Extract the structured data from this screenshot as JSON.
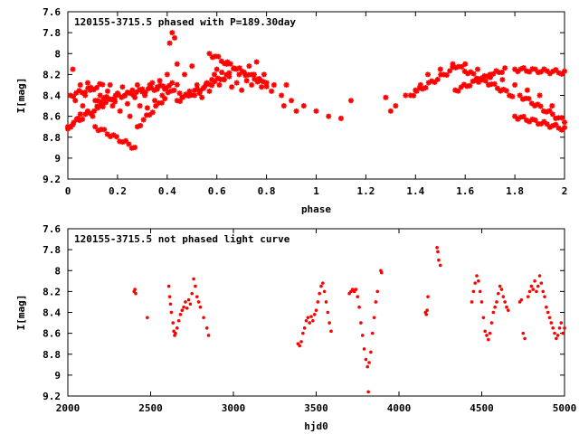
{
  "chart_data": [
    {
      "type": "scatter",
      "title": "120155-3715.5 phased with P=189.30day",
      "xlabel": "phase",
      "ylabel": "I[mag]",
      "xlim": [
        0,
        2
      ],
      "ylim": [
        7.6,
        9.2
      ],
      "y_inverted": true,
      "grid": false,
      "marker_color": "#ff0000",
      "marker": "asterisk",
      "xticks": [
        "0",
        "0.2",
        "0.4",
        "0.6",
        "0.8",
        "1",
        "1.2",
        "1.4",
        "1.6",
        "1.8",
        "2"
      ],
      "yticks": [
        "7.6",
        "7.8",
        "8",
        "8.2",
        "8.4",
        "8.6",
        "8.8",
        "9",
        "9.2"
      ],
      "points": [
        [
          0.0,
          8.72
        ],
        [
          0.01,
          8.7
        ],
        [
          0.02,
          8.15
        ],
        [
          0.02,
          8.68
        ],
        [
          0.03,
          8.45
        ],
        [
          0.04,
          8.62
        ],
        [
          0.05,
          8.3
        ],
        [
          0.05,
          8.58
        ],
        [
          0.06,
          8.5
        ],
        [
          0.07,
          8.4
        ],
        [
          0.08,
          8.55
        ],
        [
          0.08,
          8.28
        ],
        [
          0.09,
          8.35
        ],
        [
          0.1,
          8.6
        ],
        [
          0.11,
          8.45
        ],
        [
          0.12,
          8.52
        ],
        [
          0.13,
          8.4
        ],
        [
          0.14,
          8.48
        ],
        [
          0.15,
          8.42
        ],
        [
          0.16,
          8.36
        ],
        [
          0.17,
          8.3
        ],
        [
          0.18,
          8.5
        ],
        [
          0.19,
          8.46
        ],
        [
          0.2,
          8.38
        ],
        [
          0.21,
          8.55
        ],
        [
          0.22,
          8.32
        ],
        [
          0.23,
          8.4
        ],
        [
          0.24,
          8.48
        ],
        [
          0.25,
          8.6
        ],
        [
          0.26,
          8.35
        ],
        [
          0.27,
          8.42
        ],
        [
          0.28,
          8.3
        ],
        [
          0.29,
          8.5
        ],
        [
          0.3,
          8.34
        ],
        [
          0.31,
          8.4
        ],
        [
          0.32,
          8.52
        ],
        [
          0.33,
          8.3
        ],
        [
          0.34,
          8.28
        ],
        [
          0.35,
          8.45
        ],
        [
          0.36,
          8.32
        ],
        [
          0.37,
          8.26
        ],
        [
          0.38,
          8.4
        ],
        [
          0.39,
          8.34
        ],
        [
          0.4,
          8.2
        ],
        [
          0.41,
          7.9
        ],
        [
          0.42,
          7.8
        ],
        [
          0.43,
          7.85
        ],
        [
          0.44,
          8.1
        ],
        [
          0.45,
          8.38
        ],
        [
          0.46,
          8.42
        ],
        [
          0.47,
          8.2
        ],
        [
          0.48,
          8.4
        ],
        [
          0.49,
          8.36
        ],
        [
          0.5,
          8.12
        ],
        [
          0.51,
          8.4
        ],
        [
          0.52,
          8.3
        ],
        [
          0.53,
          8.38
        ],
        [
          0.54,
          8.42
        ],
        [
          0.55,
          8.32
        ],
        [
          0.56,
          8.28
        ],
        [
          0.57,
          8.36
        ],
        [
          0.58,
          8.25
        ],
        [
          0.59,
          8.2
        ],
        [
          0.6,
          8.15
        ],
        [
          0.61,
          8.3
        ],
        [
          0.62,
          8.18
        ],
        [
          0.63,
          8.25
        ],
        [
          0.64,
          8.1
        ],
        [
          0.65,
          8.22
        ],
        [
          0.66,
          8.32
        ],
        [
          0.67,
          8.14
        ],
        [
          0.68,
          8.28
        ],
        [
          0.69,
          8.2
        ],
        [
          0.7,
          8.35
        ],
        [
          0.71,
          8.18
        ],
        [
          0.72,
          8.26
        ],
        [
          0.73,
          8.12
        ],
        [
          0.74,
          8.3
        ],
        [
          0.75,
          8.2
        ],
        [
          0.76,
          8.08
        ],
        [
          0.77,
          8.24
        ],
        [
          0.78,
          8.32
        ],
        [
          0.79,
          8.2
        ],
        [
          0.8,
          8.28
        ],
        [
          0.82,
          8.36
        ],
        [
          0.83,
          8.3
        ],
        [
          0.86,
          8.4
        ],
        [
          0.87,
          8.5
        ],
        [
          0.88,
          8.3
        ],
        [
          0.9,
          8.45
        ],
        [
          0.92,
          8.55
        ],
        [
          0.95,
          8.5
        ],
        [
          1.0,
          8.55
        ],
        [
          1.05,
          8.6
        ],
        [
          1.1,
          8.62
        ],
        [
          1.14,
          8.45
        ],
        [
          1.28,
          8.42
        ],
        [
          1.3,
          8.55
        ],
        [
          1.32,
          8.5
        ],
        [
          1.36,
          8.4
        ],
        [
          1.4,
          8.35
        ],
        [
          1.42,
          8.3
        ],
        [
          1.45,
          8.2
        ],
        [
          1.5,
          8.15
        ],
        [
          1.55,
          8.12
        ],
        [
          1.6,
          8.1
        ],
        [
          1.65,
          8.15
        ],
        [
          1.7,
          8.2
        ],
        [
          1.75,
          8.25
        ],
        [
          1.8,
          8.3
        ],
        [
          1.85,
          8.35
        ],
        [
          1.9,
          8.4
        ],
        [
          1.95,
          8.5
        ]
      ],
      "clusters": [
        {
          "x0": 0.0,
          "x1": 0.2,
          "y0": 8.7,
          "y1": 8.4
        },
        {
          "x0": 0.01,
          "x1": 0.14,
          "y0": 8.4,
          "y1": 8.3
        },
        {
          "x0": 0.11,
          "x1": 0.27,
          "y0": 8.7,
          "y1": 8.9
        },
        {
          "x0": 0.12,
          "x1": 0.42,
          "y0": 8.45,
          "y1": 8.3
        },
        {
          "x0": 0.28,
          "x1": 0.44,
          "y0": 8.7,
          "y1": 8.3
        },
        {
          "x0": 0.44,
          "x1": 0.65,
          "y0": 8.45,
          "y1": 8.2
        },
        {
          "x0": 0.57,
          "x1": 0.8,
          "y0": 8.0,
          "y1": 8.3
        },
        {
          "x0": 1.38,
          "x1": 1.55,
          "y0": 8.4,
          "y1": 8.15
        },
        {
          "x0": 1.55,
          "x1": 1.79,
          "y0": 8.1,
          "y1": 8.4
        },
        {
          "x0": 1.56,
          "x1": 1.76,
          "y0": 8.35,
          "y1": 8.15
        },
        {
          "x0": 1.8,
          "x1": 2.0,
          "y0": 8.6,
          "y1": 8.72
        },
        {
          "x0": 1.8,
          "x1": 2.0,
          "y0": 8.15,
          "y1": 8.18
        },
        {
          "x0": 1.82,
          "x1": 2.0,
          "y0": 8.4,
          "y1": 8.65
        }
      ]
    },
    {
      "type": "scatter",
      "title": "120155-3715.5 not phased light curve",
      "xlabel": "hjd0",
      "ylabel": "I[mag]",
      "xlim": [
        2000,
        5000
      ],
      "ylim": [
        7.6,
        9.2
      ],
      "y_inverted": true,
      "grid": false,
      "marker_color": "#ff0000",
      "marker": "dot",
      "xticks": [
        "2000",
        "2500",
        "3000",
        "3500",
        "4000",
        "4500",
        "5000"
      ],
      "yticks": [
        "7.6",
        "7.8",
        "8",
        "8.2",
        "8.4",
        "8.6",
        "8.8",
        "9",
        "9.2"
      ],
      "points": [
        [
          2400,
          8.2
        ],
        [
          2405,
          8.18
        ],
        [
          2410,
          8.22
        ],
        [
          2480,
          8.45
        ],
        [
          2610,
          8.15
        ],
        [
          2615,
          8.25
        ],
        [
          2620,
          8.32
        ],
        [
          2625,
          8.4
        ],
        [
          2635,
          8.5
        ],
        [
          2640,
          8.58
        ],
        [
          2645,
          8.62
        ],
        [
          2650,
          8.6
        ],
        [
          2660,
          8.55
        ],
        [
          2670,
          8.48
        ],
        [
          2680,
          8.42
        ],
        [
          2690,
          8.38
        ],
        [
          2700,
          8.35
        ],
        [
          2710,
          8.3
        ],
        [
          2720,
          8.36
        ],
        [
          2730,
          8.28
        ],
        [
          2740,
          8.32
        ],
        [
          2750,
          8.22
        ],
        [
          2760,
          8.08
        ],
        [
          2770,
          8.15
        ],
        [
          2780,
          8.25
        ],
        [
          2790,
          8.3
        ],
        [
          2800,
          8.35
        ],
        [
          2820,
          8.45
        ],
        [
          2840,
          8.55
        ],
        [
          2850,
          8.62
        ],
        [
          3390,
          8.7
        ],
        [
          3400,
          8.72
        ],
        [
          3410,
          8.68
        ],
        [
          3420,
          8.6
        ],
        [
          3430,
          8.55
        ],
        [
          3440,
          8.48
        ],
        [
          3450,
          8.45
        ],
        [
          3460,
          8.5
        ],
        [
          3470,
          8.44
        ],
        [
          3480,
          8.48
        ],
        [
          3490,
          8.42
        ],
        [
          3500,
          8.38
        ],
        [
          3510,
          8.3
        ],
        [
          3520,
          8.22
        ],
        [
          3530,
          8.15
        ],
        [
          3540,
          8.12
        ],
        [
          3550,
          8.2
        ],
        [
          3560,
          8.3
        ],
        [
          3570,
          8.4
        ],
        [
          3580,
          8.5
        ],
        [
          3590,
          8.58
        ],
        [
          3700,
          8.22
        ],
        [
          3710,
          8.2
        ],
        [
          3720,
          8.18
        ],
        [
          3730,
          8.2
        ],
        [
          3740,
          8.18
        ],
        [
          3750,
          8.25
        ],
        [
          3760,
          8.35
        ],
        [
          3770,
          8.5
        ],
        [
          3780,
          8.62
        ],
        [
          3790,
          8.75
        ],
        [
          3800,
          8.85
        ],
        [
          3810,
          8.92
        ],
        [
          3815,
          9.16
        ],
        [
          3820,
          8.88
        ],
        [
          3830,
          8.78
        ],
        [
          3840,
          8.6
        ],
        [
          3850,
          8.45
        ],
        [
          3860,
          8.3
        ],
        [
          3870,
          8.2
        ],
        [
          3890,
          8.0
        ],
        [
          3895,
          8.02
        ],
        [
          4160,
          8.4
        ],
        [
          4165,
          8.42
        ],
        [
          4170,
          8.38
        ],
        [
          4175,
          8.25
        ],
        [
          4230,
          7.78
        ],
        [
          4235,
          7.82
        ],
        [
          4240,
          7.9
        ],
        [
          4250,
          7.95
        ],
        [
          4440,
          8.3
        ],
        [
          4450,
          8.2
        ],
        [
          4460,
          8.12
        ],
        [
          4470,
          8.05
        ],
        [
          4480,
          8.1
        ],
        [
          4490,
          8.2
        ],
        [
          4500,
          8.3
        ],
        [
          4510,
          8.45
        ],
        [
          4520,
          8.58
        ],
        [
          4530,
          8.62
        ],
        [
          4540,
          8.66
        ],
        [
          4550,
          8.6
        ],
        [
          4560,
          8.5
        ],
        [
          4570,
          8.4
        ],
        [
          4580,
          8.35
        ],
        [
          4590,
          8.3
        ],
        [
          4600,
          8.22
        ],
        [
          4610,
          8.15
        ],
        [
          4620,
          8.18
        ],
        [
          4630,
          8.25
        ],
        [
          4640,
          8.3
        ],
        [
          4650,
          8.35
        ],
        [
          4660,
          8.38
        ],
        [
          4730,
          8.3
        ],
        [
          4740,
          8.28
        ],
        [
          4750,
          8.6
        ],
        [
          4760,
          8.65
        ],
        [
          4780,
          8.25
        ],
        [
          4790,
          8.2
        ],
        [
          4800,
          8.15
        ],
        [
          4810,
          8.18
        ],
        [
          4820,
          8.1
        ],
        [
          4830,
          8.2
        ],
        [
          4840,
          8.15
        ],
        [
          4850,
          8.05
        ],
        [
          4860,
          8.12
        ],
        [
          4870,
          8.2
        ],
        [
          4880,
          8.25
        ],
        [
          4890,
          8.35
        ],
        [
          4900,
          8.4
        ],
        [
          4910,
          8.45
        ],
        [
          4920,
          8.5
        ],
        [
          4930,
          8.55
        ],
        [
          4940,
          8.6
        ],
        [
          4950,
          8.65
        ],
        [
          4960,
          8.62
        ],
        [
          4970,
          8.55
        ],
        [
          4980,
          8.5
        ],
        [
          4990,
          8.6
        ],
        [
          5000,
          8.55
        ]
      ]
    }
  ]
}
